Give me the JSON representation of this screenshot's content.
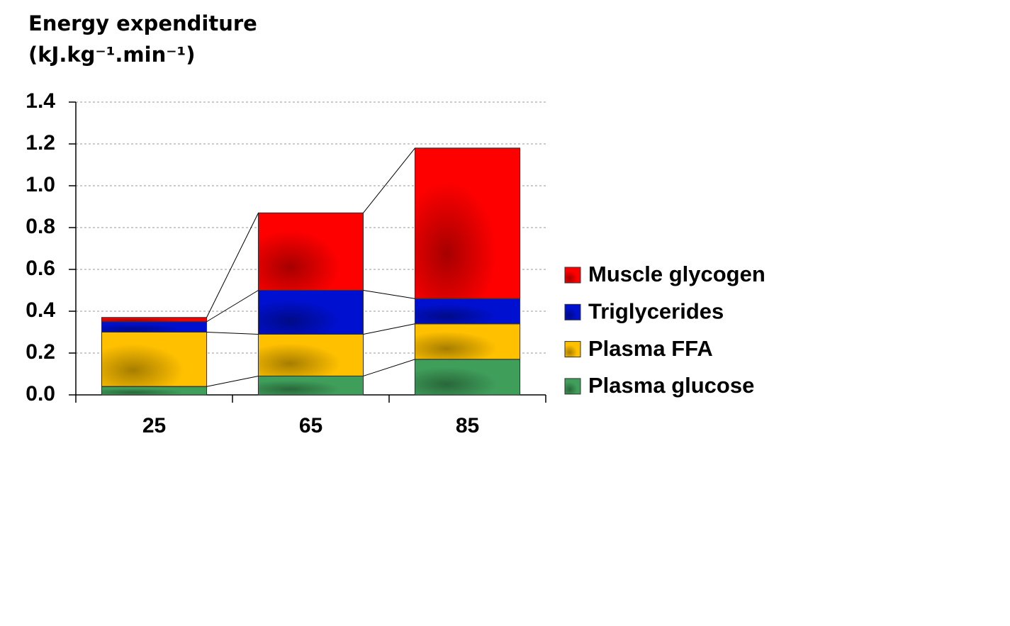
{
  "chart_data": {
    "type": "stacked_bar",
    "y_label": [
      "Energy expenditure",
      "(kJ.kg⁻¹.min⁻¹)"
    ],
    "categories": [
      "25",
      "65",
      "85"
    ],
    "series": [
      {
        "name": "Plasma glucose",
        "color": "#3f9e5a",
        "values": [
          0.04,
          0.09,
          0.17
        ]
      },
      {
        "name": "Plasma FFA",
        "color": "#ffc000",
        "values": [
          0.26,
          0.2,
          0.17
        ]
      },
      {
        "name": "Triglycerides",
        "color": "#0010d0",
        "values": [
          0.05,
          0.21,
          0.12
        ]
      },
      {
        "name": "Muscle glycogen",
        "color": "#ff0000",
        "values": [
          0.02,
          0.37,
          0.72
        ]
      }
    ],
    "ylim": [
      0,
      1.4
    ],
    "yticks": [
      {
        "value": 0,
        "label": "0.0"
      },
      0.2,
      0.4,
      0.6,
      0.8,
      {
        "value": 1,
        "label": "1.0"
      },
      1.2,
      1.4
    ],
    "grid": true,
    "legend": "right"
  }
}
